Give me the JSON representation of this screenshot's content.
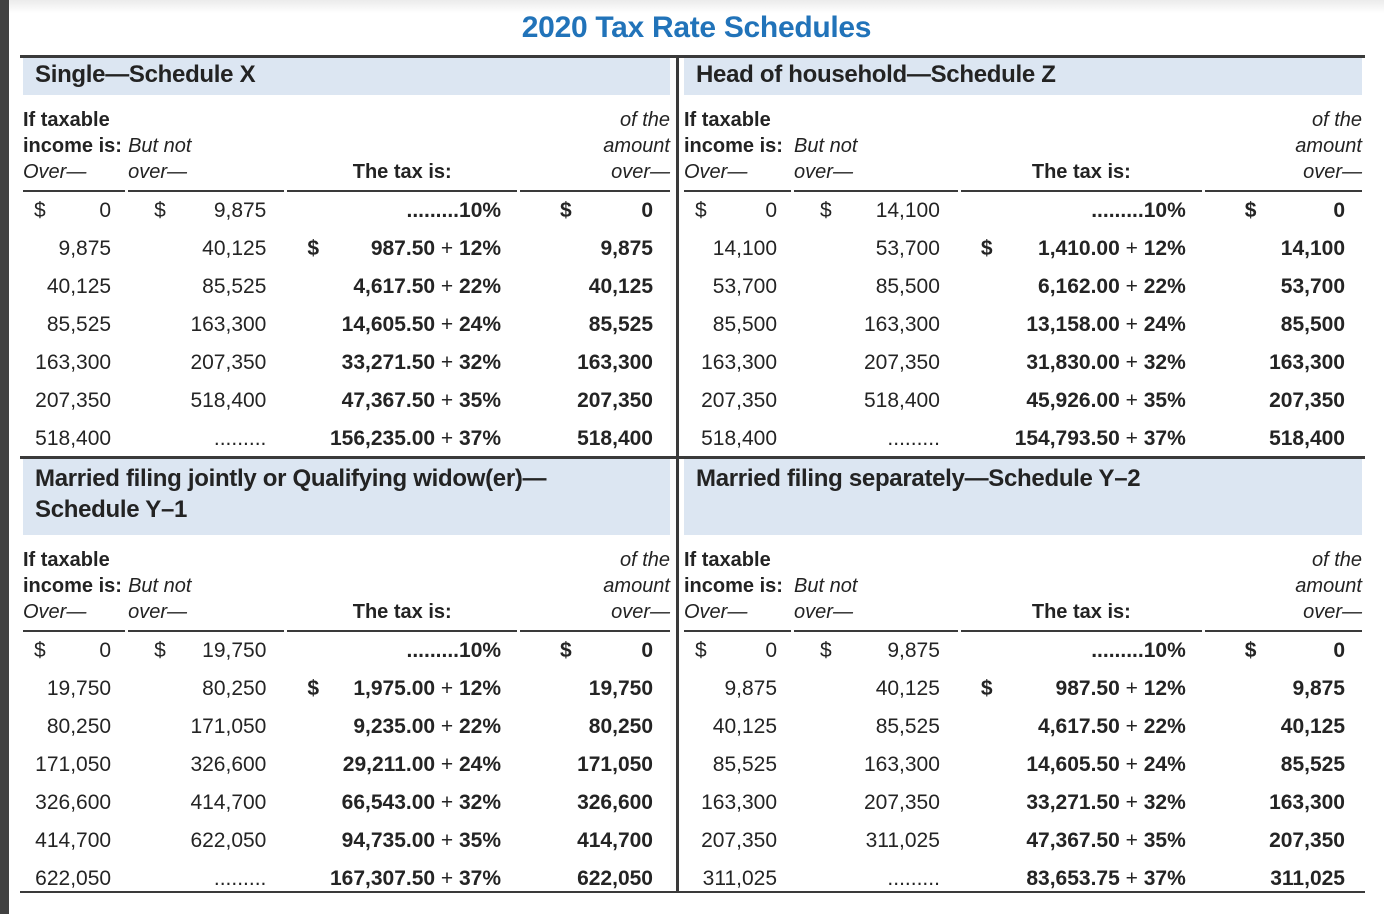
{
  "title": "2020 Tax Rate Schedules",
  "columns": {
    "over_line1": "If taxable",
    "over_line2": "income is:",
    "over_line3": "Over—",
    "butnot_line1": "But not",
    "butnot_line2": "over—",
    "tax": "The tax is:",
    "amt_line1": "of the",
    "amt_line2": "amount",
    "amt_line3": "over—"
  },
  "sections": [
    {
      "title_line1": "Single—Schedule X",
      "title_line2": "",
      "rows": [
        {
          "over_sign": "$",
          "over": "0",
          "but_not_sign": "$",
          "but_not": "9,875",
          "tax_sign": "",
          "tax": ".........10%",
          "amount_sign": "$",
          "amount": "0"
        },
        {
          "over_sign": "",
          "over": "9,875",
          "but_not_sign": "",
          "but_not": "40,125",
          "tax_sign": "$",
          "tax": "987.50 + 12%",
          "amount_sign": "",
          "amount": "9,875"
        },
        {
          "over_sign": "",
          "over": "40,125",
          "but_not_sign": "",
          "but_not": "85,525",
          "tax_sign": "",
          "tax": "4,617.50 + 22%",
          "amount_sign": "",
          "amount": "40,125"
        },
        {
          "over_sign": "",
          "over": "85,525",
          "but_not_sign": "",
          "but_not": "163,300",
          "tax_sign": "",
          "tax": "14,605.50 + 24%",
          "amount_sign": "",
          "amount": "85,525"
        },
        {
          "over_sign": "",
          "over": "163,300",
          "but_not_sign": "",
          "but_not": "207,350",
          "tax_sign": "",
          "tax": "33,271.50 + 32%",
          "amount_sign": "",
          "amount": "163,300"
        },
        {
          "over_sign": "",
          "over": "207,350",
          "but_not_sign": "",
          "but_not": "518,400",
          "tax_sign": "",
          "tax": "47,367.50 + 35%",
          "amount_sign": "",
          "amount": "207,350"
        },
        {
          "over_sign": "",
          "over": "518,400",
          "but_not_sign": "",
          "but_not": ".........",
          "tax_sign": "",
          "tax": "156,235.00 + 37%",
          "amount_sign": "",
          "amount": "518,400"
        }
      ]
    },
    {
      "title_line1": "Head of household—Schedule Z",
      "title_line2": "",
      "rows": [
        {
          "over_sign": "$",
          "over": "0",
          "but_not_sign": "$",
          "but_not": "14,100",
          "tax_sign": "",
          "tax": ".........10%",
          "amount_sign": "$",
          "amount": "0"
        },
        {
          "over_sign": "",
          "over": "14,100",
          "but_not_sign": "",
          "but_not": "53,700",
          "tax_sign": "$",
          "tax": "1,410.00 + 12%",
          "amount_sign": "",
          "amount": "14,100"
        },
        {
          "over_sign": "",
          "over": "53,700",
          "but_not_sign": "",
          "but_not": "85,500",
          "tax_sign": "",
          "tax": "6,162.00 + 22%",
          "amount_sign": "",
          "amount": "53,700"
        },
        {
          "over_sign": "",
          "over": "85,500",
          "but_not_sign": "",
          "but_not": "163,300",
          "tax_sign": "",
          "tax": "13,158.00 + 24%",
          "amount_sign": "",
          "amount": "85,500"
        },
        {
          "over_sign": "",
          "over": "163,300",
          "but_not_sign": "",
          "but_not": "207,350",
          "tax_sign": "",
          "tax": "31,830.00 + 32%",
          "amount_sign": "",
          "amount": "163,300"
        },
        {
          "over_sign": "",
          "over": "207,350",
          "but_not_sign": "",
          "but_not": "518,400",
          "tax_sign": "",
          "tax": "45,926.00 + 35%",
          "amount_sign": "",
          "amount": "207,350"
        },
        {
          "over_sign": "",
          "over": "518,400",
          "but_not_sign": "",
          "but_not": ".........",
          "tax_sign": "",
          "tax": "154,793.50 + 37%",
          "amount_sign": "",
          "amount": "518,400"
        }
      ]
    },
    {
      "title_line1": "Married filing jointly or Qualifying widow(er)—",
      "title_line2": "Schedule Y–1",
      "rows": [
        {
          "over_sign": "$",
          "over": "0",
          "but_not_sign": "$",
          "but_not": "19,750",
          "tax_sign": "",
          "tax": ".........10%",
          "amount_sign": "$",
          "amount": "0"
        },
        {
          "over_sign": "",
          "over": "19,750",
          "but_not_sign": "",
          "but_not": "80,250",
          "tax_sign": "$",
          "tax": "1,975.00 + 12%",
          "amount_sign": "",
          "amount": "19,750"
        },
        {
          "over_sign": "",
          "over": "80,250",
          "but_not_sign": "",
          "but_not": "171,050",
          "tax_sign": "",
          "tax": "9,235.00 + 22%",
          "amount_sign": "",
          "amount": "80,250"
        },
        {
          "over_sign": "",
          "over": "171,050",
          "but_not_sign": "",
          "but_not": "326,600",
          "tax_sign": "",
          "tax": "29,211.00 + 24%",
          "amount_sign": "",
          "amount": "171,050"
        },
        {
          "over_sign": "",
          "over": "326,600",
          "but_not_sign": "",
          "but_not": "414,700",
          "tax_sign": "",
          "tax": "66,543.00 + 32%",
          "amount_sign": "",
          "amount": "326,600"
        },
        {
          "over_sign": "",
          "over": "414,700",
          "but_not_sign": "",
          "but_not": "622,050",
          "tax_sign": "",
          "tax": "94,735.00 + 35%",
          "amount_sign": "",
          "amount": "414,700"
        },
        {
          "over_sign": "",
          "over": "622,050",
          "but_not_sign": "",
          "but_not": ".........",
          "tax_sign": "",
          "tax": "167,307.50 + 37%",
          "amount_sign": "",
          "amount": "622,050"
        }
      ]
    },
    {
      "title_line1": "Married filing separately—Schedule Y–2",
      "title_line2": "",
      "rows": [
        {
          "over_sign": "$",
          "over": "0",
          "but_not_sign": "$",
          "but_not": "9,875",
          "tax_sign": "",
          "tax": ".........10%",
          "amount_sign": "$",
          "amount": "0"
        },
        {
          "over_sign": "",
          "over": "9,875",
          "but_not_sign": "",
          "but_not": "40,125",
          "tax_sign": "$",
          "tax": "987.50 + 12%",
          "amount_sign": "",
          "amount": "9,875"
        },
        {
          "over_sign": "",
          "over": "40,125",
          "but_not_sign": "",
          "but_not": "85,525",
          "tax_sign": "",
          "tax": "4,617.50 + 22%",
          "amount_sign": "",
          "amount": "40,125"
        },
        {
          "over_sign": "",
          "over": "85,525",
          "but_not_sign": "",
          "but_not": "163,300",
          "tax_sign": "",
          "tax": "14,605.50 + 24%",
          "amount_sign": "",
          "amount": "85,525"
        },
        {
          "over_sign": "",
          "over": "163,300",
          "but_not_sign": "",
          "but_not": "207,350",
          "tax_sign": "",
          "tax": "33,271.50 + 32%",
          "amount_sign": "",
          "amount": "163,300"
        },
        {
          "over_sign": "",
          "over": "207,350",
          "but_not_sign": "",
          "but_not": "311,025",
          "tax_sign": "",
          "tax": "47,367.50 + 35%",
          "amount_sign": "",
          "amount": "207,350"
        },
        {
          "over_sign": "",
          "over": "311,025",
          "but_not_sign": "",
          "but_not": ".........",
          "tax_sign": "",
          "tax": "83,653.75 + 37%",
          "amount_sign": "",
          "amount": "311,025"
        }
      ]
    }
  ],
  "colors": {
    "title_blue": "#2173b9",
    "header_bar_blue": "#dce6f2",
    "rule_dark": "#3a3a3a",
    "edge_bar": "#414141"
  }
}
